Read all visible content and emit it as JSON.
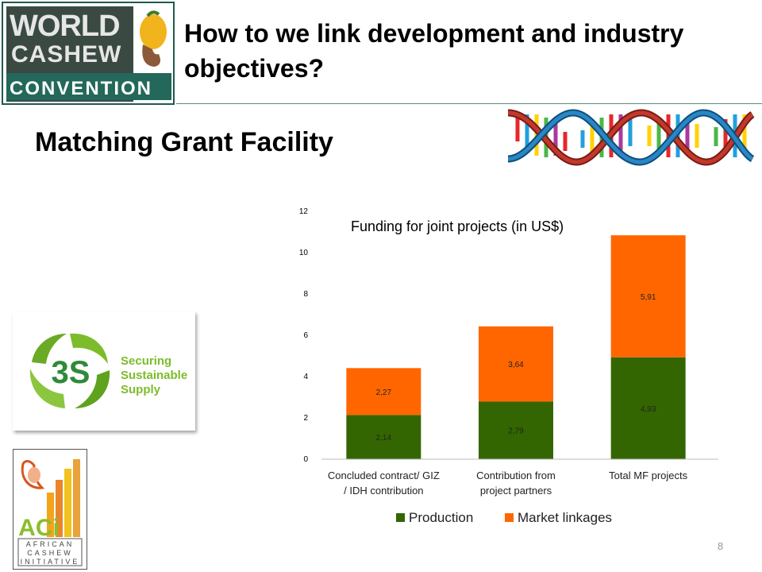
{
  "logo": {
    "line1": "WORLD",
    "line2": "CASHEW",
    "line3": "CONVENTION"
  },
  "header": {
    "title": "How to we link development and industry objectives?"
  },
  "section": {
    "title": "Matching Grant Facility"
  },
  "logo_3s": {
    "mark": "3S",
    "line1": "Securing",
    "line2": "Sustainable",
    "line3": "Supply"
  },
  "logo_aci": {
    "mark": "ACi",
    "text": "AFRICAN CASHEW INITIATIVE"
  },
  "page": {
    "number": "8"
  },
  "colors": {
    "production": "#336600",
    "market_linkages": "#ff6600"
  },
  "chart_data": {
    "type": "bar",
    "stacked": true,
    "title": "Funding for joint projects (in US$)",
    "categories": [
      [
        "Concluded contract/ GIZ",
        "/ IDH contribution"
      ],
      [
        "Contribution from",
        "project partners"
      ],
      [
        "Total MF projects"
      ]
    ],
    "series": [
      {
        "name": "Production",
        "values": [
          2.14,
          2.79,
          4.93
        ],
        "labels": [
          "2,14",
          "2,79",
          "4,93"
        ]
      },
      {
        "name": "Market linkages",
        "values": [
          2.27,
          3.64,
          5.91
        ],
        "labels": [
          "2,27",
          "3,64",
          "5,91"
        ]
      }
    ],
    "ylim": [
      0,
      12
    ],
    "yticks": [
      0,
      2,
      4,
      6,
      8,
      10,
      12
    ],
    "legend_position": "bottom",
    "grid": false
  }
}
